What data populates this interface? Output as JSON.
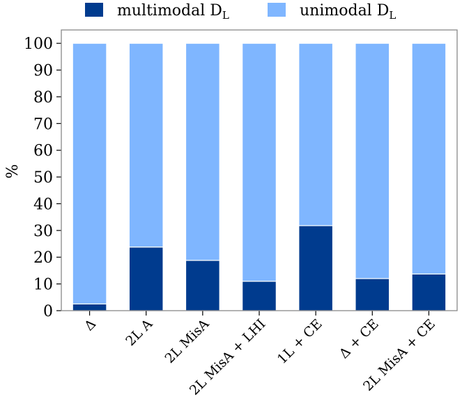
{
  "chart_data": {
    "type": "bar",
    "stacked": true,
    "categories": [
      "Δ",
      "2L A",
      "2L MisA",
      "2L MisA + LHI",
      "1L + CE",
      "Δ + CE",
      "2L MisA + CE"
    ],
    "series": [
      {
        "name": "multimodal D",
        "name_subscript": "L",
        "color": "#003b8e",
        "values": [
          2.5,
          23.8,
          18.8,
          11.0,
          31.8,
          12.0,
          13.7
        ]
      },
      {
        "name": "unimodal D",
        "name_subscript": "L",
        "color": "#7fb6ff",
        "values": [
          97.5,
          76.2,
          81.2,
          89.0,
          68.2,
          88.0,
          86.3
        ]
      }
    ],
    "ylabel": "%",
    "xlabel": "",
    "ylim": [
      0,
      105
    ],
    "yticks": [
      0,
      10,
      20,
      30,
      40,
      50,
      60,
      70,
      80,
      90,
      100
    ],
    "grid": false,
    "legend_position": "top-center"
  }
}
